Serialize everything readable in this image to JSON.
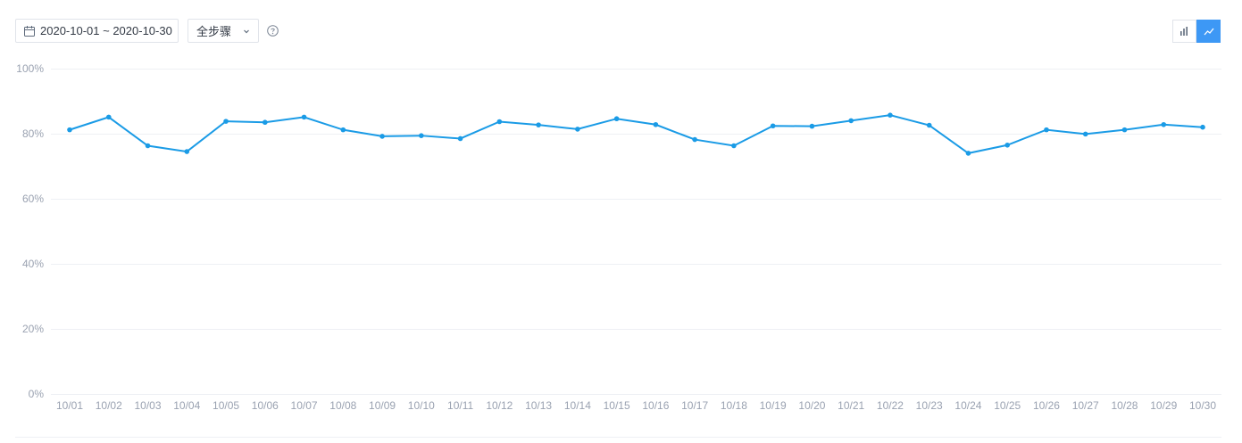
{
  "toolbar": {
    "date_range": "2020-10-01 ~ 2020-10-30",
    "step_select": "全步骤",
    "icons": {
      "calendar": "calendar-icon",
      "dropdown": "chevron-down-icon",
      "help": "question-circle-icon",
      "bar_view": "bar-chart-icon",
      "line_view": "line-chart-icon"
    },
    "active_view": "line"
  },
  "colors": {
    "series": "#1a9be6",
    "active_toggle": "#3d98f5",
    "grid": "#eef0f4",
    "tick_text": "#9aa2b1"
  },
  "chart_data": {
    "type": "line",
    "x": [
      "10/01",
      "10/02",
      "10/03",
      "10/04",
      "10/05",
      "10/06",
      "10/07",
      "10/08",
      "10/09",
      "10/10",
      "10/11",
      "10/12",
      "10/13",
      "10/14",
      "10/15",
      "10/16",
      "10/17",
      "10/18",
      "10/19",
      "10/20",
      "10/21",
      "10/22",
      "10/23",
      "10/24",
      "10/25",
      "10/26",
      "10/27",
      "10/28",
      "10/29",
      "10/30"
    ],
    "series": [
      {
        "values": [
          81.2,
          85.1,
          76.3,
          74.5,
          83.8,
          83.5,
          85.1,
          81.2,
          79.2,
          79.4,
          78.5,
          83.7,
          82.7,
          81.4,
          84.6,
          82.8,
          78.2,
          76.3,
          82.4,
          82.3,
          84.0,
          85.7,
          82.6,
          74.0,
          76.5,
          81.2,
          79.9,
          81.2,
          82.8,
          82.0
        ]
      }
    ],
    "ylim": [
      0,
      100
    ],
    "yticks": [
      "0%",
      "20%",
      "40%",
      "60%",
      "80%",
      "100%"
    ],
    "grid": true,
    "legend": "none"
  }
}
